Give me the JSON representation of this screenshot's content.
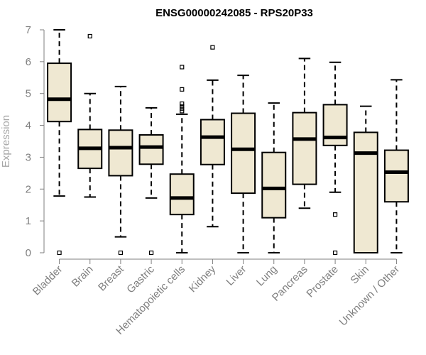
{
  "chart_data": {
    "type": "boxplot",
    "title": "ENSG00000242085 - RPS20P33",
    "xlabel": "",
    "ylabel": "Expression",
    "ylim": [
      0,
      7
    ],
    "yticks": [
      0,
      1,
      2,
      3,
      4,
      5,
      6,
      7
    ],
    "categories": [
      "Bladder",
      "Brain",
      "Breast",
      "Gastric",
      "Hematopoietic cells",
      "Kidney",
      "Liver",
      "Lung",
      "Pancreas",
      "Prostate",
      "Skin",
      "Unknown / Other"
    ],
    "boxes": [
      {
        "category": "Bladder",
        "whisker_low": 1.78,
        "q1": 4.12,
        "median": 4.82,
        "q3": 5.95,
        "whisker_high": 7.0,
        "outliers": [
          0.0
        ]
      },
      {
        "category": "Brain",
        "whisker_low": 1.75,
        "q1": 2.65,
        "median": 3.28,
        "q3": 3.87,
        "whisker_high": 5.0,
        "outliers": [
          6.8
        ]
      },
      {
        "category": "Breast",
        "whisker_low": 0.5,
        "q1": 2.42,
        "median": 3.3,
        "q3": 3.85,
        "whisker_high": 5.22,
        "outliers": [
          0.0
        ]
      },
      {
        "category": "Gastric",
        "whisker_low": 1.72,
        "q1": 2.78,
        "median": 3.32,
        "q3": 3.7,
        "whisker_high": 4.55,
        "outliers": [
          0.0
        ]
      },
      {
        "category": "Hematopoietic cells",
        "whisker_low": 0.0,
        "q1": 1.2,
        "median": 1.72,
        "q3": 2.47,
        "whisker_high": 4.35,
        "outliers": [
          4.45,
          4.52,
          4.6,
          4.68,
          5.13,
          5.83
        ]
      },
      {
        "category": "Kidney",
        "whisker_low": 0.82,
        "q1": 2.77,
        "median": 3.63,
        "q3": 4.18,
        "whisker_high": 5.42,
        "outliers": [
          6.45
        ]
      },
      {
        "category": "Liver",
        "whisker_low": 0.0,
        "q1": 1.87,
        "median": 3.25,
        "q3": 4.38,
        "whisker_high": 5.57,
        "outliers": []
      },
      {
        "category": "Lung",
        "whisker_low": 0.0,
        "q1": 1.1,
        "median": 2.02,
        "q3": 3.15,
        "whisker_high": 4.7,
        "outliers": []
      },
      {
        "category": "Pancreas",
        "whisker_low": 1.4,
        "q1": 2.15,
        "median": 3.57,
        "q3": 4.4,
        "whisker_high": 6.1,
        "outliers": []
      },
      {
        "category": "Prostate",
        "whisker_low": 1.9,
        "q1": 3.37,
        "median": 3.62,
        "q3": 4.65,
        "whisker_high": 5.98,
        "outliers": [
          1.2,
          0.0
        ]
      },
      {
        "category": "Skin",
        "whisker_low": 0.0,
        "q1": 0.0,
        "median": 3.13,
        "q3": 3.78,
        "whisker_high": 4.6,
        "outliers": []
      },
      {
        "category": "Unknown / Other",
        "whisker_low": 0.0,
        "q1": 1.6,
        "median": 2.53,
        "q3": 3.22,
        "whisker_high": 5.43,
        "outliers": []
      }
    ],
    "legend": "none",
    "grid": false
  },
  "colors": {
    "box_fill": "#efe8d2",
    "stroke": "#000000",
    "axis": "#7f7f7f",
    "tick_label": "#7f7f7f",
    "ylabel": "#a6a6a6",
    "title": "#000000"
  }
}
